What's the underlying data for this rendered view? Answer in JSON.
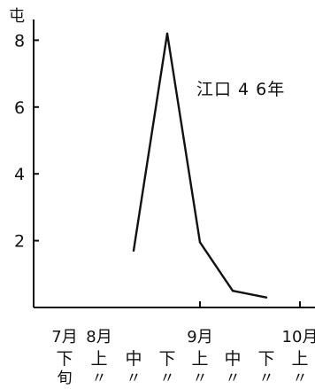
{
  "chart_data": {
    "type": "line",
    "ylabel": "屯",
    "annotation": "江口 4 6年",
    "ylim": [
      0,
      9
    ],
    "yticks": [
      2,
      4,
      6,
      8
    ],
    "x_columns": [
      {
        "month": "7月",
        "dekad": "下",
        "suffix": "旬"
      },
      {
        "month": "8月",
        "dekad": "上",
        "suffix": "〃"
      },
      {
        "month": "",
        "dekad": "中",
        "suffix": "〃"
      },
      {
        "month": "",
        "dekad": "下",
        "suffix": "〃"
      },
      {
        "month": "9月",
        "dekad": "上",
        "suffix": "〃"
      },
      {
        "month": "",
        "dekad": "中",
        "suffix": "〃"
      },
      {
        "month": "",
        "dekad": "下",
        "suffix": "〃"
      },
      {
        "month": "10月",
        "dekad": "上",
        "suffix": "〃"
      }
    ],
    "series": [
      {
        "points": [
          {
            "x": "8月中旬",
            "y": 1.7
          },
          {
            "x": "8月下旬",
            "y": 8.2
          },
          {
            "x": "9月上旬",
            "y": 1.95
          },
          {
            "x": "9月中旬",
            "y": 0.5
          },
          {
            "x": "9月下旬",
            "y": 0.3
          }
        ]
      }
    ],
    "grid": false,
    "color": "#111111"
  }
}
